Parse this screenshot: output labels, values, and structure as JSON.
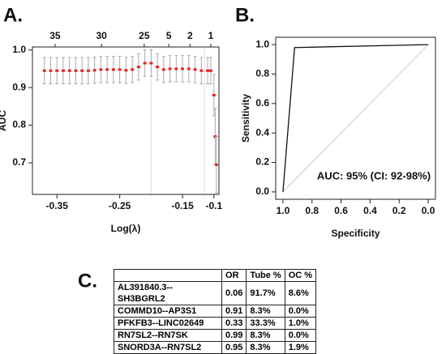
{
  "chart_data": [
    {
      "type": "scatter",
      "title": "A.",
      "x_label": "Log(λ)",
      "y_label": "AUC",
      "color": "#e8231e",
      "error_color": "#aaaaaa",
      "x": [
        -0.37,
        -0.36,
        -0.35,
        -0.34,
        -0.33,
        -0.32,
        -0.31,
        -0.3,
        -0.29,
        -0.28,
        -0.27,
        -0.26,
        -0.25,
        -0.24,
        -0.23,
        -0.22,
        -0.21,
        -0.2,
        -0.19,
        -0.18,
        -0.17,
        -0.16,
        -0.15,
        -0.14,
        -0.13,
        -0.12,
        -0.11,
        -0.105,
        -0.1,
        -0.098,
        -0.096
      ],
      "values": [
        0.945,
        0.945,
        0.945,
        0.945,
        0.945,
        0.945,
        0.945,
        0.945,
        0.946,
        0.948,
        0.948,
        0.948,
        0.948,
        0.946,
        0.948,
        0.955,
        0.965,
        0.965,
        0.955,
        0.948,
        0.95,
        0.95,
        0.95,
        0.95,
        0.948,
        0.945,
        0.945,
        0.945,
        0.88,
        0.77,
        0.695
      ],
      "errors": [
        0.035,
        0.035,
        0.035,
        0.035,
        0.035,
        0.035,
        0.035,
        0.035,
        0.035,
        0.035,
        0.035,
        0.035,
        0.035,
        0.035,
        0.035,
        0.035,
        0.035,
        0.035,
        0.035,
        0.035,
        0.035,
        0.035,
        0.035,
        0.035,
        0.035,
        0.035,
        0.035,
        0.035,
        0.055,
        0.075,
        0.075
      ],
      "xlim": [
        -0.389,
        -0.092
      ],
      "ylim": [
        0.616,
        1.008
      ],
      "xticks": [
        -0.35,
        -0.25,
        -0.15,
        -0.1
      ],
      "yticks": [
        0.7,
        0.8,
        0.9,
        {
          "value": 1.0,
          "label": "1.0"
        }
      ],
      "top_xticks": [
        {
          "value": -0.353,
          "label": "35"
        },
        {
          "value": -0.279,
          "label": "30"
        },
        {
          "value": -0.211,
          "label": "25"
        },
        {
          "value": -0.172,
          "label": "5"
        },
        {
          "value": -0.138,
          "label": "2"
        },
        {
          "value": -0.105,
          "label": "1"
        }
      ],
      "vlines": [
        -0.2,
        -0.115
      ]
    },
    {
      "type": "line",
      "title": "B.",
      "x_label": "Specificity",
      "y_label": "Sensitivity",
      "color": "#111111",
      "diagonal": true,
      "x": [
        1.0,
        0.92,
        0.0
      ],
      "values": [
        0.0,
        0.98,
        1.0
      ],
      "xlim": [
        1.05,
        -0.05
      ],
      "ylim": [
        -0.05,
        1.05
      ],
      "xticks": [
        {
          "value": 1.0,
          "label": "1.0"
        },
        0.8,
        0.6,
        0.4,
        0.2,
        {
          "value": 0.0,
          "label": "0.0"
        }
      ],
      "yticks": [
        {
          "value": 0.0,
          "label": "0.0"
        },
        0.2,
        0.4,
        0.6,
        0.8,
        {
          "value": 1.0,
          "label": "1.0"
        }
      ],
      "annotation": "AUC: 95% (CI: 92-98%)"
    }
  ],
  "table": {
    "label": "C.",
    "columns": [
      "OR",
      "Tube %",
      "OC %"
    ],
    "rows": [
      [
        "AL391840.3--SH3BGRL2",
        "0.06",
        "91.7%",
        "8.6%"
      ],
      [
        "COMMD10--AP3S1",
        "0.91",
        "8.3%",
        "0.0%"
      ],
      [
        "PFKFB3--LINC02649",
        "0.33",
        "33.3%",
        "1.0%"
      ],
      [
        "RN7SL2--RN7SK",
        "0.99",
        "8.3%",
        "0.0%"
      ],
      [
        "SNORD3A--RN7SL2",
        "0.95",
        "8.3%",
        "1.9%"
      ]
    ]
  }
}
